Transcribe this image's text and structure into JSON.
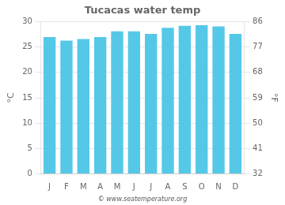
{
  "chart_data": {
    "type": "bar",
    "title": "Tucacas water temp",
    "categories": [
      "J",
      "F",
      "M",
      "A",
      "M",
      "J",
      "J",
      "A",
      "S",
      "O",
      "N",
      "D"
    ],
    "values": [
      27.0,
      26.3,
      26.6,
      27.0,
      28.1,
      28.1,
      27.6,
      28.8,
      29.2,
      29.3,
      29.1,
      27.6
    ],
    "color": "#55c8e8",
    "ylabel": "°C",
    "y2label": "°F",
    "ylim": [
      0,
      30
    ],
    "yticks": [
      0,
      5,
      10,
      15,
      20,
      25,
      30
    ],
    "y2lim": [
      32,
      86
    ],
    "y2ticks": [
      32,
      41,
      50,
      59,
      68,
      77,
      86
    ],
    "grid": true,
    "annotations": [
      "© www.seatemperature.org"
    ]
  }
}
